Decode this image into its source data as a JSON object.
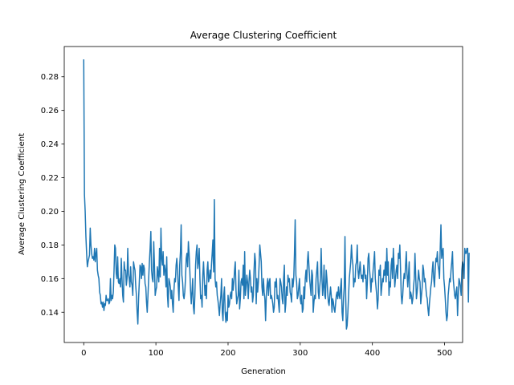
{
  "chart_data": {
    "type": "line",
    "title": "Average Clustering Coefficient",
    "xlabel": "Generation",
    "ylabel": "Average Clustering Coefficient",
    "xlim": [
      -27,
      525
    ],
    "ylim": [
      0.122,
      0.298
    ],
    "xticks": [
      0,
      100,
      200,
      300,
      400,
      500
    ],
    "xtick_labels": [
      "0",
      "100",
      "200",
      "300",
      "400",
      "500"
    ],
    "yticks": [
      0.14,
      0.16,
      0.18,
      0.2,
      0.22,
      0.24,
      0.26,
      0.28
    ],
    "ytick_labels": [
      "0.14",
      "0.16",
      "0.18",
      "0.20",
      "0.22",
      "0.24",
      "0.26",
      "0.28"
    ],
    "grid": false,
    "line_color": "#1f77b4",
    "series": [
      {
        "x_start": 0,
        "x_step": 1,
        "values": [
          0.29,
          0.21,
          0.2,
          0.185,
          0.175,
          0.167,
          0.17,
          0.172,
          0.174,
          0.19,
          0.18,
          0.175,
          0.172,
          0.173,
          0.171,
          0.178,
          0.17,
          0.175,
          0.178,
          0.165,
          0.162,
          0.16,
          0.152,
          0.15,
          0.145,
          0.146,
          0.143,
          0.146,
          0.141,
          0.145,
          0.144,
          0.15,
          0.147,
          0.147,
          0.148,
          0.145,
          0.146,
          0.16,
          0.147,
          0.15,
          0.148,
          0.152,
          0.165,
          0.18,
          0.178,
          0.163,
          0.16,
          0.173,
          0.158,
          0.157,
          0.16,
          0.155,
          0.172,
          0.16,
          0.15,
          0.146,
          0.17,
          0.165,
          0.165,
          0.156,
          0.16,
          0.178,
          0.163,
          0.16,
          0.155,
          0.167,
          0.158,
          0.156,
          0.15,
          0.17,
          0.167,
          0.165,
          0.156,
          0.15,
          0.14,
          0.133,
          0.148,
          0.158,
          0.168,
          0.167,
          0.16,
          0.169,
          0.162,
          0.168,
          0.166,
          0.157,
          0.155,
          0.146,
          0.14,
          0.15,
          0.16,
          0.17,
          0.178,
          0.188,
          0.165,
          0.16,
          0.158,
          0.182,
          0.168,
          0.15,
          0.153,
          0.155,
          0.167,
          0.163,
          0.158,
          0.178,
          0.161,
          0.19,
          0.172,
          0.168,
          0.176,
          0.162,
          0.168,
          0.165,
          0.155,
          0.173,
          0.15,
          0.143,
          0.16,
          0.158,
          0.155,
          0.148,
          0.153,
          0.145,
          0.14,
          0.153,
          0.16,
          0.158,
          0.168,
          0.172,
          0.165,
          0.155,
          0.147,
          0.168,
          0.176,
          0.192,
          0.162,
          0.158,
          0.15,
          0.148,
          0.152,
          0.16,
          0.172,
          0.175,
          0.167,
          0.182,
          0.175,
          0.165,
          0.153,
          0.145,
          0.152,
          0.16,
          0.143,
          0.139,
          0.15,
          0.168,
          0.176,
          0.18,
          0.166,
          0.17,
          0.178,
          0.16,
          0.148,
          0.15,
          0.143,
          0.162,
          0.17,
          0.16,
          0.15,
          0.156,
          0.148,
          0.165,
          0.17,
          0.158,
          0.16,
          0.165,
          0.16,
          0.168,
          0.175,
          0.183,
          0.164,
          0.207,
          0.16,
          0.155,
          0.158,
          0.15,
          0.147,
          0.143,
          0.138,
          0.145,
          0.15,
          0.16,
          0.14,
          0.135,
          0.15,
          0.155,
          0.14,
          0.134,
          0.14,
          0.135,
          0.15,
          0.143,
          0.145,
          0.15,
          0.152,
          0.148,
          0.16,
          0.153,
          0.158,
          0.165,
          0.17,
          0.153,
          0.145,
          0.148,
          0.15,
          0.165,
          0.142,
          0.148,
          0.158,
          0.16,
          0.156,
          0.168,
          0.148,
          0.176,
          0.15,
          0.155,
          0.162,
          0.158,
          0.148,
          0.158,
          0.165,
          0.16,
          0.152,
          0.155,
          0.146,
          0.15,
          0.165,
          0.175,
          0.17,
          0.145,
          0.16,
          0.152,
          0.158,
          0.168,
          0.18,
          0.175,
          0.17,
          0.155,
          0.15,
          0.16,
          0.152,
          0.148,
          0.135,
          0.15,
          0.156,
          0.16,
          0.15,
          0.158,
          0.16,
          0.148,
          0.15,
          0.148,
          0.145,
          0.14,
          0.143,
          0.158,
          0.155,
          0.16,
          0.148,
          0.15,
          0.145,
          0.14,
          0.16,
          0.158,
          0.155,
          0.148,
          0.145,
          0.16,
          0.168,
          0.14,
          0.145,
          0.155,
          0.15,
          0.162,
          0.158,
          0.16,
          0.152,
          0.15,
          0.146,
          0.16,
          0.155,
          0.16,
          0.175,
          0.195,
          0.162,
          0.158,
          0.148,
          0.15,
          0.155,
          0.16,
          0.148,
          0.145,
          0.15,
          0.14,
          0.142,
          0.155,
          0.148,
          0.16,
          0.165,
          0.158,
          0.17,
          0.176,
          0.168,
          0.16,
          0.155,
          0.15,
          0.165,
          0.162,
          0.14,
          0.146,
          0.15,
          0.148,
          0.16,
          0.165,
          0.17,
          0.152,
          0.148,
          0.155,
          0.16,
          0.178,
          0.162,
          0.15,
          0.155,
          0.168,
          0.15,
          0.148,
          0.165,
          0.16,
          0.152,
          0.146,
          0.144,
          0.15,
          0.155,
          0.15,
          0.14,
          0.148,
          0.146,
          0.142,
          0.14,
          0.145,
          0.15,
          0.152,
          0.148,
          0.155,
          0.15,
          0.148,
          0.155,
          0.16,
          0.14,
          0.135,
          0.148,
          0.155,
          0.185,
          0.15,
          0.13,
          0.132,
          0.14,
          0.15,
          0.16,
          0.165,
          0.17,
          0.18,
          0.172,
          0.168,
          0.155,
          0.16,
          0.158,
          0.168,
          0.17,
          0.18,
          0.165,
          0.16,
          0.165,
          0.17,
          0.163,
          0.16,
          0.162,
          0.158,
          0.168,
          0.165,
          0.16,
          0.162,
          0.148,
          0.158,
          0.172,
          0.175,
          0.166,
          0.16,
          0.152,
          0.16,
          0.158,
          0.165,
          0.17,
          0.176,
          0.16,
          0.155,
          0.15,
          0.142,
          0.148,
          0.165,
          0.162,
          0.168,
          0.15,
          0.155,
          0.16,
          0.158,
          0.165,
          0.162,
          0.17,
          0.158,
          0.178,
          0.162,
          0.17,
          0.15,
          0.158,
          0.155,
          0.168,
          0.172,
          0.16,
          0.178,
          0.168,
          0.155,
          0.16,
          0.165,
          0.168,
          0.16,
          0.175,
          0.172,
          0.18,
          0.166,
          0.15,
          0.145,
          0.15,
          0.158,
          0.163,
          0.16,
          0.168,
          0.176,
          0.163,
          0.155,
          0.162,
          0.17,
          0.148,
          0.152,
          0.15,
          0.145,
          0.148,
          0.155,
          0.16,
          0.175,
          0.162,
          0.148,
          0.152,
          0.158,
          0.165,
          0.16,
          0.158,
          0.145,
          0.15,
          0.155,
          0.168,
          0.165,
          0.158,
          0.16,
          0.155,
          0.15,
          0.148,
          0.142,
          0.138,
          0.145,
          0.15,
          0.155,
          0.158,
          0.165,
          0.17,
          0.16,
          0.155,
          0.165,
          0.172,
          0.17,
          0.176,
          0.168,
          0.165,
          0.16,
          0.178,
          0.192,
          0.172,
          0.176,
          0.178,
          0.16,
          0.155,
          0.148,
          0.14,
          0.135,
          0.138,
          0.15,
          0.155,
          0.16,
          0.158,
          0.165,
          0.17,
          0.176,
          0.16,
          0.155,
          0.15,
          0.148,
          0.152,
          0.155,
          0.138,
          0.15,
          0.16,
          0.158,
          0.155,
          0.15,
          0.165,
          0.17,
          0.168,
          0.16,
          0.178,
          0.175,
          0.175,
          0.178,
          0.178,
          0.146,
          0.175
        ]
      }
    ]
  }
}
